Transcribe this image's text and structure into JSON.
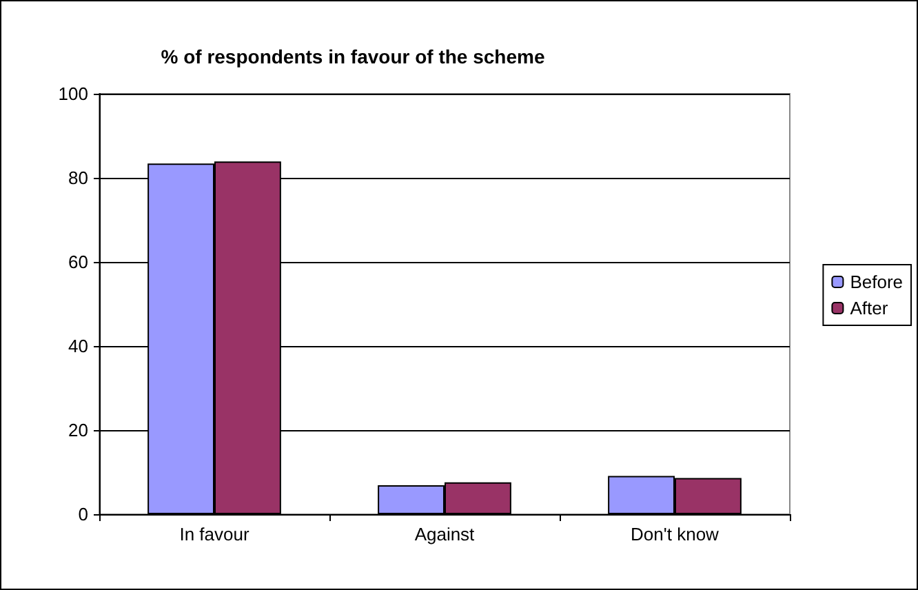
{
  "chart_data": {
    "type": "bar",
    "title": "% of respondents in favour of the scheme",
    "categories": [
      "In favour",
      "Against",
      "Don't know"
    ],
    "series": [
      {
        "name": "Before",
        "color": "#9999ff",
        "values": [
          83.4,
          6.9,
          9.1
        ]
      },
      {
        "name": "After",
        "color": "#993366",
        "values": [
          83.9,
          7.6,
          8.6
        ]
      }
    ],
    "ylim": [
      0,
      100
    ],
    "yticks": [
      0,
      20,
      40,
      60,
      80,
      100
    ],
    "grid": "y",
    "legend": "right"
  }
}
